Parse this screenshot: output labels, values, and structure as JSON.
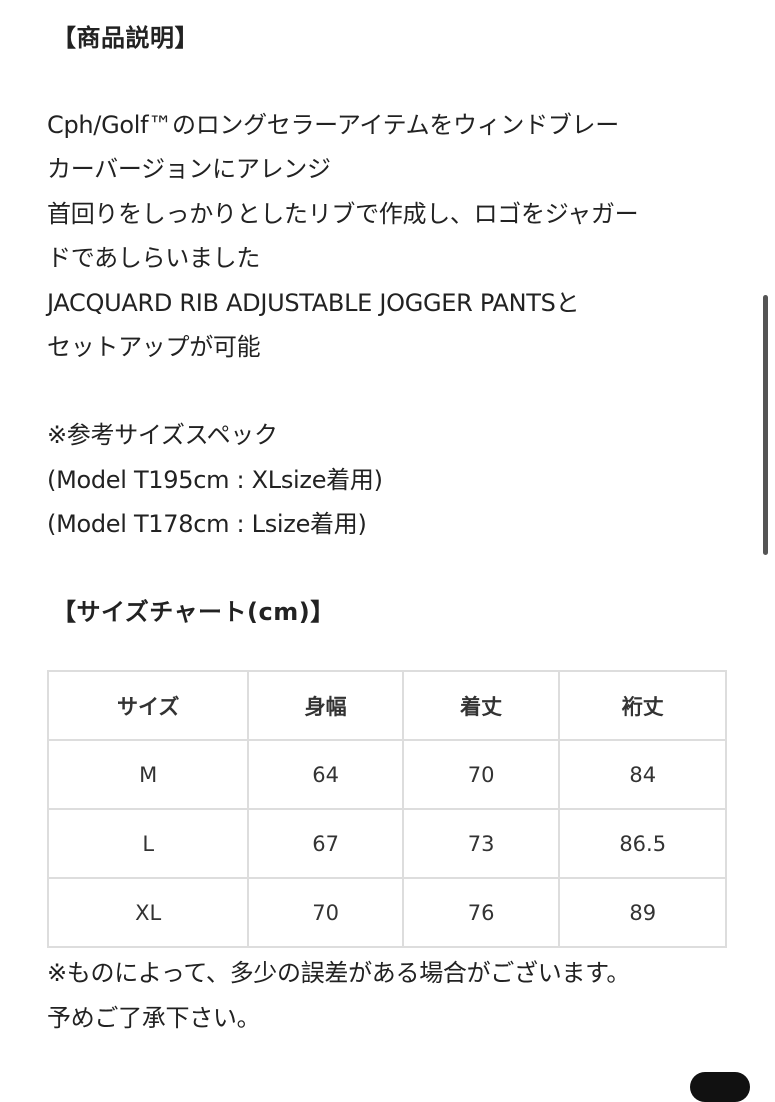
{
  "description": {
    "heading": "【商品説明】",
    "lines": [
      "Cph/Golf™のロングセラーアイテムをウィンドブレー",
      "カーバージョンにアレンジ",
      "首回りをしっかりとしたリブで作成し、ロゴをジャガー",
      "ドであしらいました",
      "JACQUARD RIB ADJUSTABLE JOGGER PANTSと",
      "セットアップが可能"
    ],
    "spec_lines": [
      "※参考サイズスペック",
      "(Model T195cm : XLsize着用)",
      "(Model T178cm : Lsize着用)"
    ]
  },
  "size_chart": {
    "heading": "【サイズチャート(cm)】",
    "headers": [
      "サイズ",
      "身幅",
      "着丈",
      "裄丈"
    ],
    "rows": [
      [
        "M",
        "64",
        "70",
        "84"
      ],
      [
        "L",
        "67",
        "73",
        "86.5"
      ],
      [
        "XL",
        "70",
        "76",
        "89"
      ]
    ],
    "notes": [
      "※ものによって、多少の誤差がある場合がございます。",
      "予めご了承下さい。"
    ]
  }
}
